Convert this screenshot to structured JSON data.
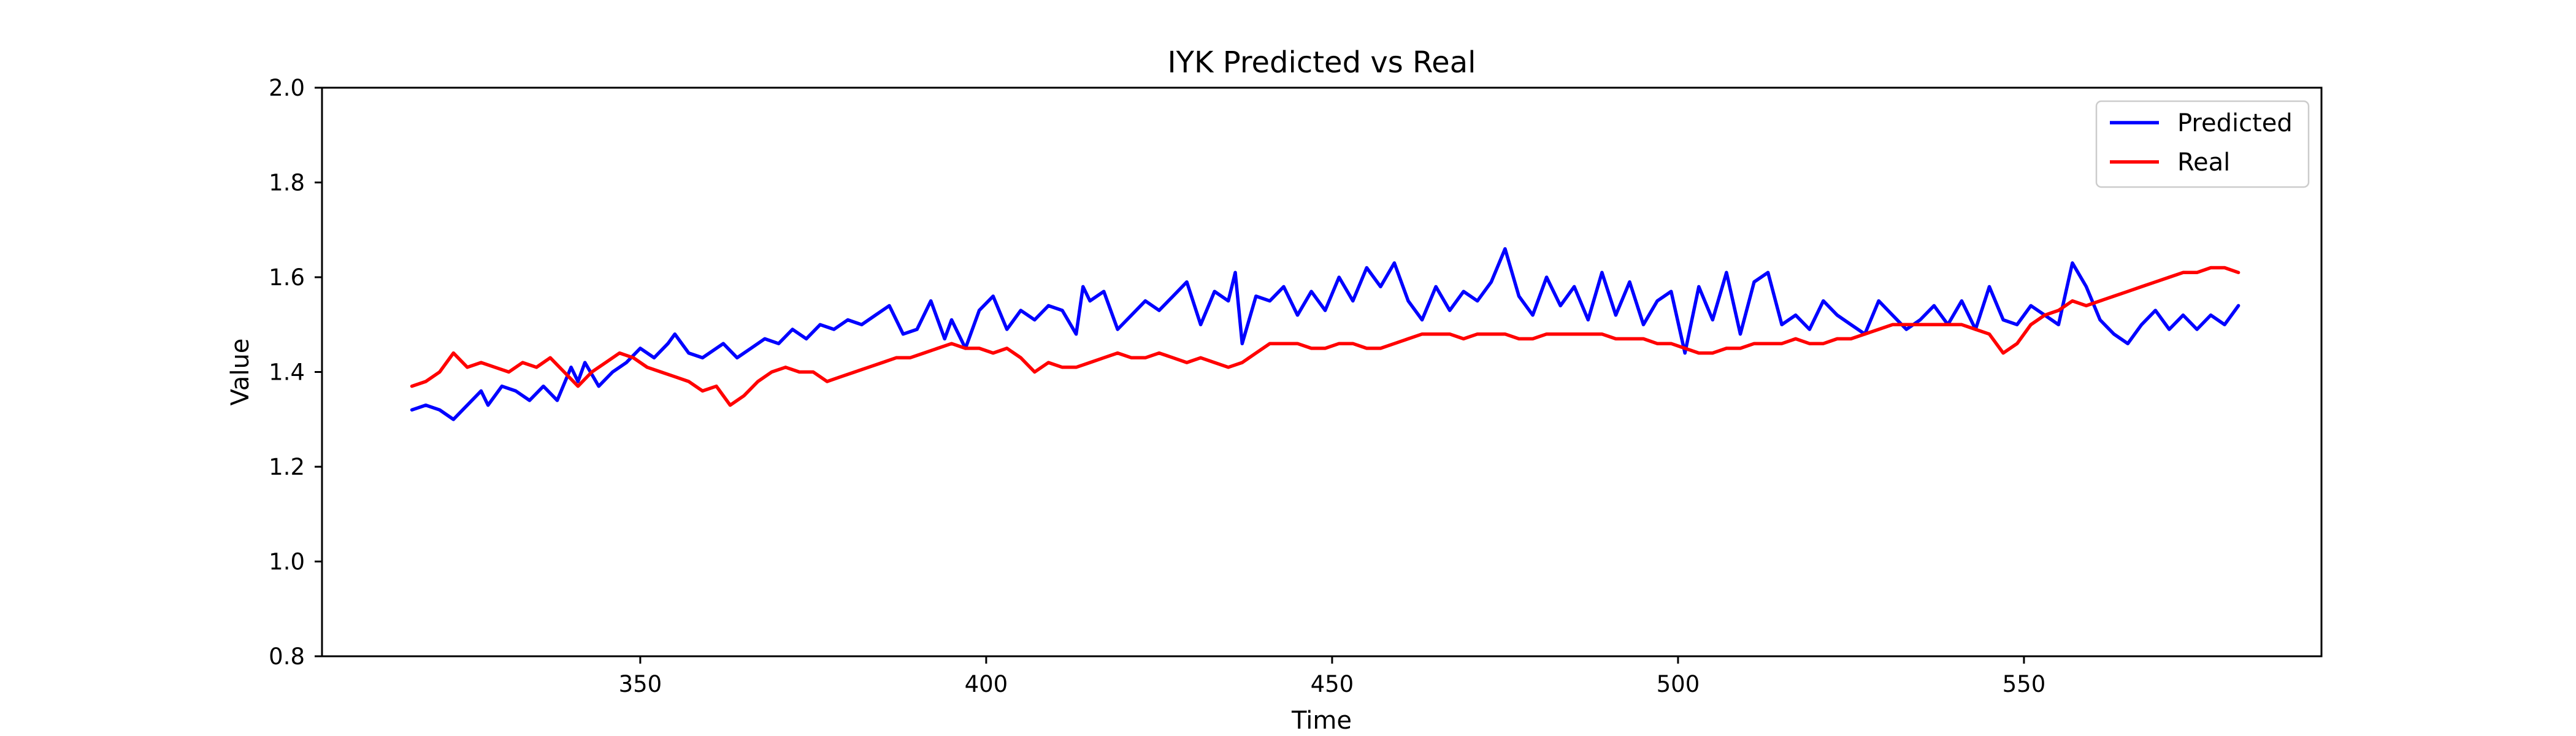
{
  "chart_data": {
    "type": "line",
    "title": "IYK Predicted vs Real",
    "xlabel": "Time",
    "ylabel": "Value",
    "xlim": [
      304,
      593
    ],
    "ylim": [
      0.8,
      2.0
    ],
    "xticks": [
      350,
      400,
      450,
      500,
      550
    ],
    "yticks": [
      0.8,
      1.0,
      1.2,
      1.4,
      1.6,
      1.8,
      2.0
    ],
    "ytick_labels": [
      "0.8",
      "1.0",
      "1.2",
      "1.4",
      "1.6",
      "1.8",
      "2.0"
    ],
    "grid": false,
    "legend_position": "top-right",
    "series": [
      {
        "name": "Predicted",
        "color": "#0000ff",
        "x": [
          317,
          319,
          321,
          323,
          325,
          327,
          328,
          330,
          332,
          334,
          336,
          338,
          340,
          341,
          342,
          344,
          346,
          348,
          350,
          352,
          354,
          355,
          357,
          359,
          361,
          362,
          364,
          366,
          368,
          370,
          372,
          374,
          376,
          378,
          380,
          382,
          384,
          386,
          388,
          390,
          392,
          394,
          395,
          397,
          399,
          401,
          403,
          405,
          407,
          409,
          411,
          413,
          414,
          415,
          417,
          419,
          421,
          423,
          425,
          427,
          429,
          431,
          433,
          435,
          436,
          437,
          439,
          441,
          443,
          445,
          447,
          449,
          451,
          453,
          455,
          457,
          459,
          461,
          463,
          465,
          467,
          469,
          471,
          473,
          475,
          477,
          479,
          481,
          483,
          485,
          487,
          489,
          491,
          493,
          495,
          497,
          499,
          501,
          503,
          505,
          507,
          509,
          511,
          513,
          515,
          517,
          519,
          521,
          523,
          525,
          527,
          529,
          531,
          533,
          535,
          537,
          539,
          541,
          543,
          545,
          547,
          549,
          551,
          553,
          555,
          557,
          559,
          561,
          563,
          565,
          567,
          569,
          571,
          573,
          575,
          577,
          579,
          581
        ],
        "values": [
          1.32,
          1.33,
          1.32,
          1.3,
          1.33,
          1.36,
          1.33,
          1.37,
          1.36,
          1.34,
          1.37,
          1.34,
          1.41,
          1.38,
          1.42,
          1.37,
          1.4,
          1.42,
          1.45,
          1.43,
          1.46,
          1.48,
          1.44,
          1.43,
          1.45,
          1.46,
          1.43,
          1.45,
          1.47,
          1.46,
          1.49,
          1.47,
          1.5,
          1.49,
          1.51,
          1.5,
          1.52,
          1.54,
          1.48,
          1.49,
          1.55,
          1.47,
          1.51,
          1.45,
          1.53,
          1.56,
          1.49,
          1.53,
          1.51,
          1.54,
          1.53,
          1.48,
          1.58,
          1.55,
          1.57,
          1.49,
          1.52,
          1.55,
          1.53,
          1.56,
          1.59,
          1.5,
          1.57,
          1.55,
          1.61,
          1.46,
          1.56,
          1.55,
          1.58,
          1.52,
          1.57,
          1.53,
          1.6,
          1.55,
          1.62,
          1.58,
          1.63,
          1.55,
          1.51,
          1.58,
          1.53,
          1.57,
          1.55,
          1.59,
          1.66,
          1.56,
          1.52,
          1.6,
          1.54,
          1.58,
          1.51,
          1.61,
          1.52,
          1.59,
          1.5,
          1.55,
          1.57,
          1.44,
          1.58,
          1.51,
          1.61,
          1.48,
          1.59,
          1.61,
          1.5,
          1.52,
          1.49,
          1.55,
          1.52,
          1.5,
          1.48,
          1.55,
          1.52,
          1.49,
          1.51,
          1.54,
          1.5,
          1.55,
          1.49,
          1.58,
          1.51,
          1.5,
          1.54,
          1.52,
          1.5,
          1.63,
          1.58,
          1.51,
          1.48,
          1.46,
          1.5,
          1.53,
          1.49,
          1.52,
          1.49,
          1.52,
          1.5,
          1.54
        ]
      },
      {
        "name": "Real",
        "color": "#ff0000",
        "x": [
          317,
          319,
          321,
          323,
          325,
          327,
          329,
          331,
          333,
          335,
          337,
          339,
          341,
          343,
          345,
          347,
          349,
          351,
          353,
          355,
          357,
          359,
          361,
          363,
          365,
          367,
          369,
          371,
          373,
          375,
          377,
          379,
          381,
          383,
          385,
          387,
          389,
          391,
          393,
          395,
          397,
          399,
          401,
          403,
          405,
          407,
          409,
          411,
          413,
          415,
          417,
          419,
          421,
          423,
          425,
          427,
          429,
          431,
          433,
          435,
          437,
          439,
          441,
          443,
          445,
          447,
          449,
          451,
          453,
          455,
          457,
          459,
          461,
          463,
          465,
          467,
          469,
          471,
          473,
          475,
          477,
          479,
          481,
          483,
          485,
          487,
          489,
          491,
          493,
          495,
          497,
          499,
          501,
          503,
          505,
          507,
          509,
          511,
          513,
          515,
          517,
          519,
          521,
          523,
          525,
          527,
          529,
          531,
          533,
          535,
          537,
          539,
          541,
          543,
          545,
          547,
          549,
          551,
          553,
          555,
          557,
          559,
          561,
          563,
          565,
          567,
          569,
          571,
          573,
          575,
          577,
          579,
          581
        ],
        "values": [
          1.37,
          1.38,
          1.4,
          1.44,
          1.41,
          1.42,
          1.41,
          1.4,
          1.42,
          1.41,
          1.43,
          1.4,
          1.37,
          1.4,
          1.42,
          1.44,
          1.43,
          1.41,
          1.4,
          1.39,
          1.38,
          1.36,
          1.37,
          1.33,
          1.35,
          1.38,
          1.4,
          1.41,
          1.4,
          1.4,
          1.38,
          1.39,
          1.4,
          1.41,
          1.42,
          1.43,
          1.43,
          1.44,
          1.45,
          1.46,
          1.45,
          1.45,
          1.44,
          1.45,
          1.43,
          1.4,
          1.42,
          1.41,
          1.41,
          1.42,
          1.43,
          1.44,
          1.43,
          1.43,
          1.44,
          1.43,
          1.42,
          1.43,
          1.42,
          1.41,
          1.42,
          1.44,
          1.46,
          1.46,
          1.46,
          1.45,
          1.45,
          1.46,
          1.46,
          1.45,
          1.45,
          1.46,
          1.47,
          1.48,
          1.48,
          1.48,
          1.47,
          1.48,
          1.48,
          1.48,
          1.47,
          1.47,
          1.48,
          1.48,
          1.48,
          1.48,
          1.48,
          1.47,
          1.47,
          1.47,
          1.46,
          1.46,
          1.45,
          1.44,
          1.44,
          1.45,
          1.45,
          1.46,
          1.46,
          1.46,
          1.47,
          1.46,
          1.46,
          1.47,
          1.47,
          1.48,
          1.49,
          1.5,
          1.5,
          1.5,
          1.5,
          1.5,
          1.5,
          1.49,
          1.48,
          1.44,
          1.46,
          1.5,
          1.52,
          1.53,
          1.55,
          1.54,
          1.55,
          1.56,
          1.57,
          1.58,
          1.59,
          1.6,
          1.61,
          1.61,
          1.62,
          1.62,
          1.61
        ]
      }
    ]
  }
}
